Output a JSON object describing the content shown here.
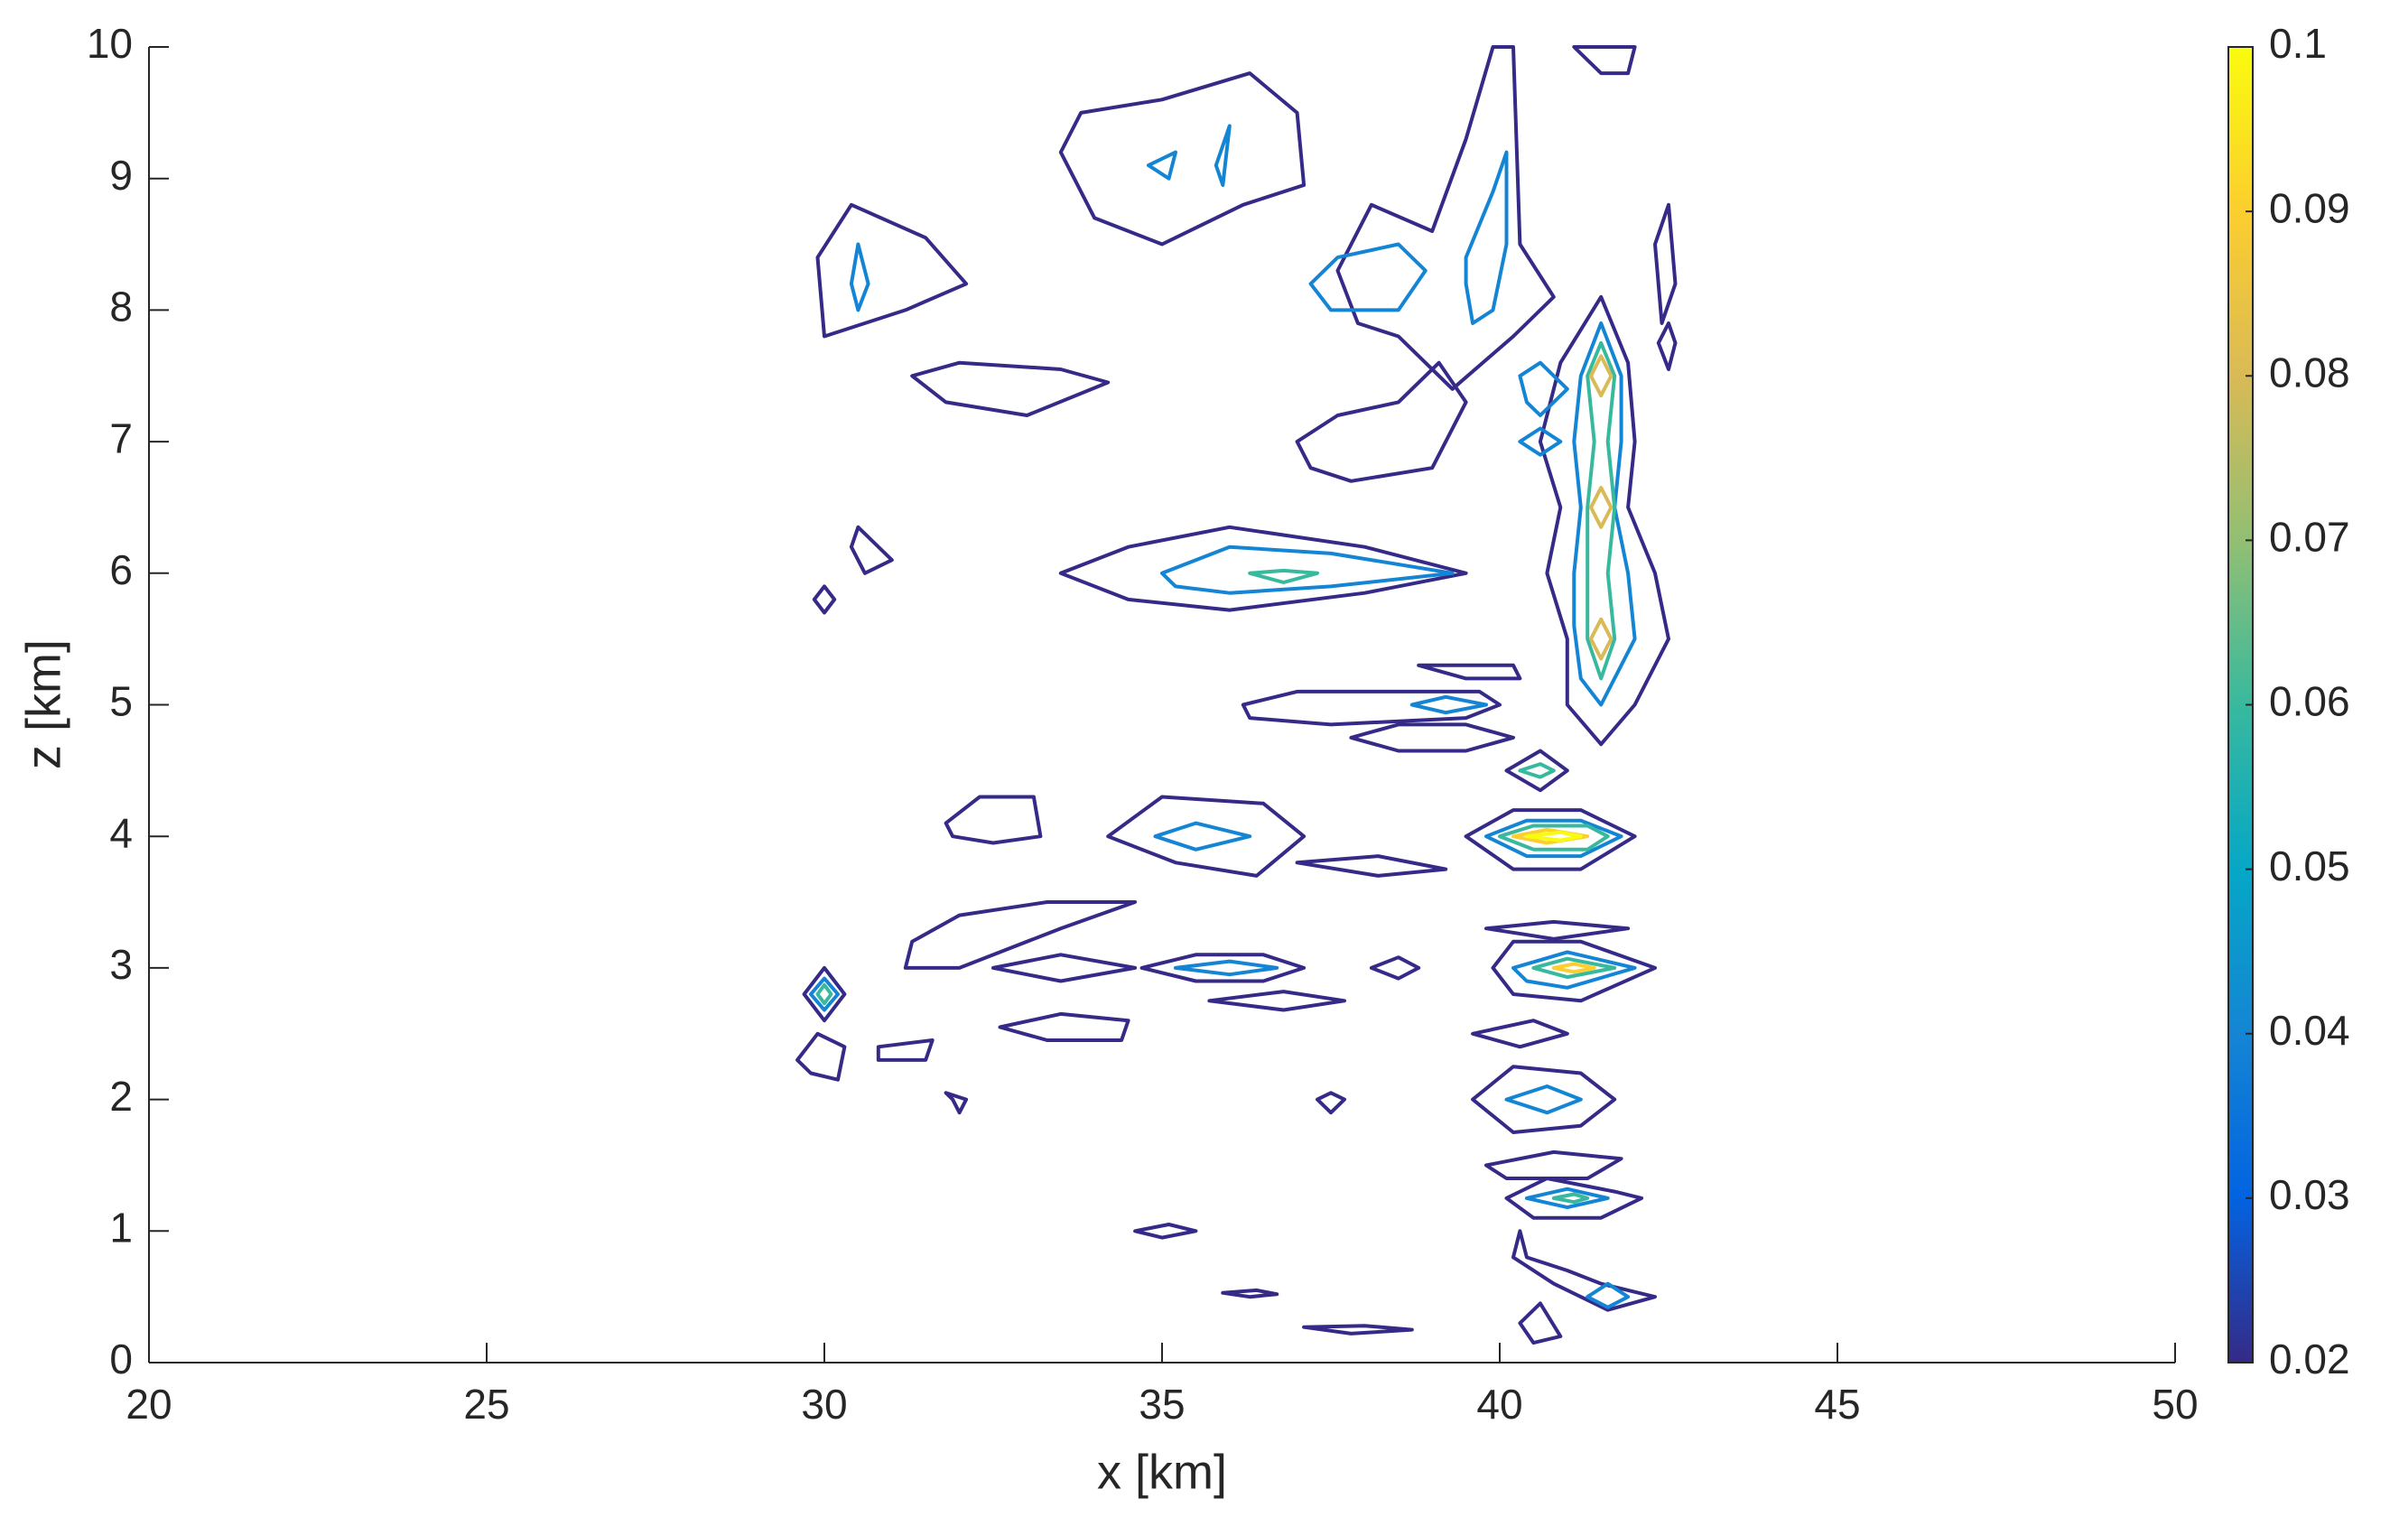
{
  "chart_data": {
    "type": "contour",
    "xlabel": "x [km]",
    "ylabel": "z [km]",
    "xlim": [
      20,
      50
    ],
    "xticks": [
      20,
      25,
      30,
      35,
      40,
      45,
      50
    ],
    "ylim": [
      0,
      10
    ],
    "yticks": [
      0,
      1,
      2,
      3,
      4,
      5,
      6,
      7,
      8,
      9,
      10
    ],
    "colorbar": {
      "clim": [
        0.02,
        0.1
      ],
      "ticks": [
        0.02,
        0.03,
        0.04,
        0.05,
        0.06,
        0.07,
        0.08,
        0.09,
        0.1
      ],
      "colors": [
        "#352a87",
        "#0363e1",
        "#1485d4",
        "#06a7c6",
        "#38b99e",
        "#92bf73",
        "#d9ba56",
        "#fcce2e",
        "#f9fb0e"
      ]
    },
    "contours": [
      {
        "level": 0.02,
        "x": [
          33.5,
          34.5,
          36,
          38,
          39.5,
          38,
          36,
          34.5
        ],
        "z": [
          6.0,
          6.2,
          6.35,
          6.2,
          6.0,
          5.85,
          5.72,
          5.8
        ]
      },
      {
        "level": 0.04,
        "x": [
          35,
          36,
          37.5,
          39.3,
          37.5,
          36,
          35.2
        ],
        "z": [
          6.0,
          6.2,
          6.15,
          6.0,
          5.9,
          5.85,
          5.9
        ]
      },
      {
        "level": 0.06,
        "x": [
          36.3,
          36.8,
          37.3,
          36.8
        ],
        "z": [
          6.0,
          6.02,
          6.0,
          5.93
        ]
      },
      {
        "level": 0.02,
        "x": [
          39.5,
          40.2,
          41.2,
          42,
          41.2,
          40.2
        ],
        "z": [
          4.0,
          4.2,
          4.2,
          4.0,
          3.75,
          3.75
        ]
      },
      {
        "level": 0.04,
        "x": [
          39.8,
          40.4,
          41.2,
          41.8,
          41.2,
          40.4
        ],
        "z": [
          4.0,
          4.12,
          4.12,
          4.0,
          3.85,
          3.85
        ]
      },
      {
        "level": 0.06,
        "x": [
          40.0,
          40.5,
          41.3,
          41.6,
          41.3,
          40.5
        ],
        "z": [
          4.0,
          4.08,
          4.08,
          4.0,
          3.9,
          3.9
        ]
      },
      {
        "level": 0.09,
        "x": [
          40.2,
          40.7,
          41.3,
          40.7
        ],
        "z": [
          4.0,
          4.05,
          4.0,
          3.95
        ]
      },
      {
        "level": 0.1,
        "x": [
          40.4,
          40.9,
          41.2,
          40.9
        ],
        "z": [
          4.0,
          4.03,
          4.0,
          3.97
        ]
      },
      {
        "level": 0.02,
        "x": [
          34.2,
          35,
          36.5,
          37.1,
          36.4,
          35.2
        ],
        "z": [
          4.0,
          4.3,
          4.25,
          4.0,
          3.7,
          3.8
        ]
      },
      {
        "level": 0.04,
        "x": [
          34.9,
          35.5,
          36.3,
          35.5
        ],
        "z": [
          4.0,
          4.1,
          4.0,
          3.9
        ]
      },
      {
        "level": 0.02,
        "x": [
          39.9,
          40.2,
          41.2,
          42.3,
          41.2,
          40.2
        ],
        "z": [
          3.0,
          3.2,
          3.2,
          3.0,
          2.75,
          2.8
        ]
      },
      {
        "level": 0.04,
        "x": [
          40.2,
          41,
          42,
          41,
          40.4
        ],
        "z": [
          3.0,
          3.12,
          3.0,
          2.85,
          2.9
        ]
      },
      {
        "level": 0.06,
        "x": [
          40.5,
          41,
          41.7,
          41
        ],
        "z": [
          3.0,
          3.07,
          3.0,
          2.93
        ]
      },
      {
        "level": 0.09,
        "x": [
          40.8,
          41.1,
          41.4,
          41.1
        ],
        "z": [
          3.0,
          3.03,
          3.0,
          2.97
        ]
      },
      {
        "level": 0.02,
        "x": [
          34.7,
          35.5,
          36.5,
          37.1,
          36.5,
          35.5
        ],
        "z": [
          3.0,
          3.1,
          3.1,
          3.0,
          2.9,
          2.9
        ]
      },
      {
        "level": 0.04,
        "x": [
          35.2,
          36,
          36.7,
          36
        ],
        "z": [
          3.0,
          3.05,
          3.0,
          2.95
        ]
      },
      {
        "level": 0.02,
        "x": [
          41,
          41,
          40.7,
          40.9,
          40.6,
          40.9,
          41.5,
          41.9,
          42,
          41.9,
          42.3,
          42.5,
          42,
          41.5
        ],
        "z": [
          5.0,
          5.5,
          6.0,
          6.5,
          7.0,
          7.6,
          8.1,
          7.6,
          7.0,
          6.5,
          6.0,
          5.5,
          5.0,
          4.7
        ]
      },
      {
        "level": 0.04,
        "x": [
          41.2,
          41.1,
          41.1,
          41.2,
          41.1,
          41.2,
          41.5,
          41.8,
          41.8,
          41.7,
          41.9,
          42,
          41.5
        ],
        "z": [
          5.2,
          5.6,
          6.0,
          6.5,
          7.0,
          7.5,
          7.9,
          7.5,
          7.0,
          6.5,
          6.0,
          5.5,
          5.0
        ]
      },
      {
        "level": 0.06,
        "x": [
          41.3,
          41.3,
          41.3,
          41.4,
          41.3,
          41.5,
          41.7,
          41.6,
          41.7,
          41.6,
          41.7,
          41.5
        ],
        "z": [
          5.5,
          6.0,
          6.5,
          7.0,
          7.5,
          7.75,
          7.5,
          7.0,
          6.5,
          6.0,
          5.5,
          5.2
        ]
      },
      {
        "level": 0.08,
        "x": [
          41.35,
          41.5,
          41.65,
          41.5
        ],
        "z": [
          5.5,
          5.65,
          5.5,
          5.35
        ]
      },
      {
        "level": 0.08,
        "x": [
          41.35,
          41.5,
          41.65,
          41.5
        ],
        "z": [
          6.5,
          6.65,
          6.5,
          6.35
        ]
      },
      {
        "level": 0.08,
        "x": [
          41.35,
          41.5,
          41.65,
          41.5
        ],
        "z": [
          7.5,
          7.65,
          7.5,
          7.35
        ]
      },
      {
        "level": 0.02,
        "x": [
          33.5,
          33.8,
          35,
          36.3,
          37,
          37.1,
          36.2,
          35,
          34
        ],
        "z": [
          9.2,
          9.5,
          9.6,
          9.8,
          9.5,
          8.95,
          8.8,
          8.5,
          8.7
        ]
      },
      {
        "level": 0.04,
        "x": [
          34.8,
          35.2,
          35.1
        ],
        "z": [
          9.1,
          9.2,
          9.0
        ]
      },
      {
        "level": 0.04,
        "x": [
          35.8,
          36,
          35.9
        ],
        "z": [
          9.1,
          9.4,
          8.95
        ]
      },
      {
        "level": 0.02,
        "x": [
          37.6,
          38.1,
          39,
          39.5,
          39.9,
          40.2,
          40.3,
          40.8,
          40.2,
          39.3,
          38.5,
          37.9
        ],
        "z": [
          8.3,
          8.8,
          8.6,
          9.3,
          10,
          10,
          8.5,
          8.1,
          7.8,
          7.4,
          7.8,
          7.9
        ]
      },
      {
        "level": 0.04,
        "x": [
          37.2,
          37.6,
          38.5,
          38.9,
          38.5,
          37.5
        ],
        "z": [
          8.2,
          8.4,
          8.5,
          8.3,
          8.0,
          8.0
        ]
      },
      {
        "level": 0.04,
        "x": [
          39.5,
          39.9,
          40.1,
          40.1,
          39.9,
          39.6,
          39.5
        ],
        "z": [
          8.4,
          8.9,
          9.2,
          8.5,
          8.0,
          7.9,
          8.2
        ]
      },
      {
        "level": 0.02,
        "x": [
          29.9,
          30.4,
          31.5,
          32.1,
          31.2,
          30
        ],
        "z": [
          8.4,
          8.8,
          8.55,
          8.2,
          8.0,
          7.8
        ]
      },
      {
        "level": 0.04,
        "x": [
          30.4,
          30.5,
          30.65,
          30.5
        ],
        "z": [
          8.2,
          8.5,
          8.2,
          8.0
        ]
      },
      {
        "level": 0.02,
        "x": [
          31.3,
          32,
          33.5,
          34.2,
          33,
          31.8
        ],
        "z": [
          7.5,
          7.6,
          7.55,
          7.45,
          7.2,
          7.3
        ]
      },
      {
        "level": 0.02,
        "x": [
          37,
          37.6,
          38.5,
          39.1,
          39.5,
          39,
          37.8,
          37.2
        ],
        "z": [
          7.0,
          7.2,
          7.3,
          7.6,
          7.3,
          6.8,
          6.7,
          6.8
        ]
      },
      {
        "level": 0.02,
        "x": [
          36.2,
          37,
          38.5,
          39.7,
          40,
          39.5,
          37.5,
          36.3
        ],
        "z": [
          5.0,
          5.1,
          5.1,
          5.1,
          5.0,
          4.9,
          4.85,
          4.9
        ]
      },
      {
        "level": 0.04,
        "x": [
          38.7,
          39.2,
          39.8,
          39.2
        ],
        "z": [
          5.0,
          5.06,
          5.0,
          4.94
        ]
      },
      {
        "level": 0.02,
        "x": [
          40.1,
          40.6,
          41,
          40.6
        ],
        "z": [
          4.5,
          4.65,
          4.5,
          4.35
        ]
      },
      {
        "level": 0.06,
        "x": [
          40.3,
          40.6,
          40.8,
          40.6
        ],
        "z": [
          4.5,
          4.55,
          4.5,
          4.45
        ]
      },
      {
        "level": 0.02,
        "x": [
          37.8,
          38.5,
          39.5,
          40.2,
          39.5,
          38.5
        ],
        "z": [
          4.75,
          4.85,
          4.85,
          4.75,
          4.65,
          4.65
        ]
      },
      {
        "level": 0.02,
        "x": [
          39.6,
          40.2,
          41.2,
          41.7,
          41.2,
          40.2
        ],
        "z": [
          2.0,
          2.25,
          2.2,
          2.0,
          1.8,
          1.75
        ]
      },
      {
        "level": 0.04,
        "x": [
          40.1,
          40.7,
          41.2,
          40.7
        ],
        "z": [
          2.0,
          2.1,
          2.0,
          1.9
        ]
      },
      {
        "level": 0.02,
        "x": [
          40.1,
          40.7,
          41.7,
          42.1,
          41.5,
          40.5
        ],
        "z": [
          1.25,
          1.4,
          1.3,
          1.25,
          1.1,
          1.1
        ]
      },
      {
        "level": 0.04,
        "x": [
          40.4,
          41,
          41.6,
          41
        ],
        "z": [
          1.25,
          1.32,
          1.25,
          1.18
        ]
      },
      {
        "level": 0.06,
        "x": [
          40.8,
          41.1,
          41.3,
          41.1
        ],
        "z": [
          1.25,
          1.28,
          1.25,
          1.22
        ]
      },
      {
        "level": 0.02,
        "x": [
          39.8,
          40.8,
          41.8,
          41.3,
          40.1
        ],
        "z": [
          1.5,
          1.6,
          1.55,
          1.4,
          1.4
        ]
      },
      {
        "level": 0.02,
        "x": [
          39.6,
          40.5,
          41,
          40.3
        ],
        "z": [
          2.5,
          2.6,
          2.5,
          2.4
        ]
      },
      {
        "level": 0.02,
        "x": [
          39.8,
          40.8,
          41.9,
          40.8
        ],
        "z": [
          3.3,
          3.35,
          3.3,
          3.22
        ]
      },
      {
        "level": 0.02,
        "x": [
          32.6,
          33.5,
          34.5,
          34.4,
          33.3
        ],
        "z": [
          2.55,
          2.65,
          2.6,
          2.45,
          2.45
        ]
      },
      {
        "level": 0.02,
        "x": [
          32.5,
          33.5,
          34.6,
          33.5
        ],
        "z": [
          3.0,
          3.1,
          3.0,
          2.9
        ]
      },
      {
        "level": 0.02,
        "x": [
          31.3,
          32,
          33.3,
          34.6,
          33.5,
          32,
          31.2
        ],
        "z": [
          3.2,
          3.4,
          3.5,
          3.5,
          3.3,
          3.0,
          3.0
        ]
      },
      {
        "level": 0.02,
        "x": [
          29.7,
          30,
          30.3,
          30
        ],
        "z": [
          2.8,
          3.0,
          2.8,
          2.6
        ]
      },
      {
        "level": 0.04,
        "x": [
          29.8,
          30,
          30.2,
          30
        ],
        "z": [
          2.8,
          2.92,
          2.8,
          2.68
        ]
      },
      {
        "level": 0.06,
        "x": [
          29.9,
          30,
          30.1,
          30
        ],
        "z": [
          2.8,
          2.87,
          2.8,
          2.73
        ]
      },
      {
        "level": 0.02,
        "x": [
          40.4,
          41,
          41.5,
          42.3,
          41.6,
          40.8,
          40.2,
          40.3
        ],
        "z": [
          0.8,
          0.7,
          0.6,
          0.5,
          0.4,
          0.6,
          0.8,
          1.0
        ]
      },
      {
        "level": 0.04,
        "x": [
          41.3,
          41.6,
          41.9,
          41.6
        ],
        "z": [
          0.5,
          0.6,
          0.5,
          0.42
        ]
      },
      {
        "level": 0.02,
        "x": [
          40.3,
          40.6,
          40.9,
          40.5
        ],
        "z": [
          0.3,
          0.45,
          0.2,
          0.15
        ]
      },
      {
        "level": 0.02,
        "x": [
          34.6,
          35.1,
          35.5,
          35
        ],
        "z": [
          1.0,
          1.05,
          1.0,
          0.95
        ]
      },
      {
        "level": 0.02,
        "x": [
          37.1,
          38,
          38.7,
          37.8
        ],
        "z": [
          0.27,
          0.28,
          0.25,
          0.22
        ]
      },
      {
        "level": 0.02,
        "x": [
          35.9,
          36.4,
          36.7,
          36.3
        ],
        "z": [
          0.53,
          0.55,
          0.52,
          0.5
        ]
      },
      {
        "level": 0.02,
        "x": [
          42.3,
          42.5,
          42.6,
          42.4
        ],
        "z": [
          8.5,
          8.8,
          8.2,
          7.9
        ]
      },
      {
        "level": 0.02,
        "x": [
          42.35,
          42.5,
          42.6,
          42.5
        ],
        "z": [
          7.75,
          7.9,
          7.75,
          7.55
        ]
      },
      {
        "level": 0.02,
        "x": [
          38.8,
          40.2,
          40.3,
          39.5
        ],
        "z": [
          5.3,
          5.3,
          5.2,
          5.2
        ]
      },
      {
        "level": 0.02,
        "x": [
          30.4,
          30.5,
          31,
          30.6
        ],
        "z": [
          6.2,
          6.35,
          6.1,
          6.0
        ]
      },
      {
        "level": 0.02,
        "x": [
          29.85,
          30,
          30.15,
          30
        ],
        "z": [
          5.8,
          5.9,
          5.8,
          5.7
        ]
      },
      {
        "level": 0.02,
        "x": [
          31.8,
          32.3,
          33.1,
          33.2,
          32.5,
          31.9
        ],
        "z": [
          4.1,
          4.3,
          4.3,
          4.0,
          3.95,
          4.0
        ]
      },
      {
        "level": 0.02,
        "x": [
          41.1,
          41.5,
          41.9,
          42
        ],
        "z": [
          10,
          9.8,
          9.8,
          10
        ]
      },
      {
        "level": 0.02,
        "x": [
          29.6,
          29.9,
          30.3,
          30.2,
          29.8
        ],
        "z": [
          2.3,
          2.5,
          2.4,
          2.15,
          2.2
        ]
      },
      {
        "level": 0.02,
        "x": [
          30.8,
          31.6,
          31.5,
          30.8
        ],
        "z": [
          2.4,
          2.45,
          2.3,
          2.3
        ]
      },
      {
        "level": 0.02,
        "x": [
          31.8,
          32.1,
          32,
          31.9
        ],
        "z": [
          2.05,
          2.0,
          1.9,
          2.0
        ]
      },
      {
        "level": 0.02,
        "x": [
          37.3,
          37.5,
          37.7,
          37.5
        ],
        "z": [
          2.0,
          2.05,
          2.0,
          1.9
        ]
      },
      {
        "level": 0.02,
        "x": [
          38.1,
          38.5,
          38.8,
          38.5
        ],
        "z": [
          3.0,
          3.08,
          3.0,
          2.92
        ]
      },
      {
        "level": 0.02,
        "x": [
          35.7,
          36.8,
          37.7,
          36.8
        ],
        "z": [
          2.75,
          2.82,
          2.75,
          2.68
        ]
      },
      {
        "level": 0.02,
        "x": [
          37,
          38.2,
          39.2,
          38.2
        ],
        "z": [
          3.8,
          3.85,
          3.75,
          3.7
        ]
      },
      {
        "level": 0.04,
        "x": [
          40.3,
          40.6,
          40.9,
          40.6
        ],
        "z": [
          7.0,
          7.1,
          7.0,
          6.9
        ]
      },
      {
        "level": 0.04,
        "x": [
          40.3,
          40.6,
          41,
          40.6,
          40.4
        ],
        "z": [
          7.5,
          7.6,
          7.4,
          7.2,
          7.3
        ]
      }
    ]
  }
}
